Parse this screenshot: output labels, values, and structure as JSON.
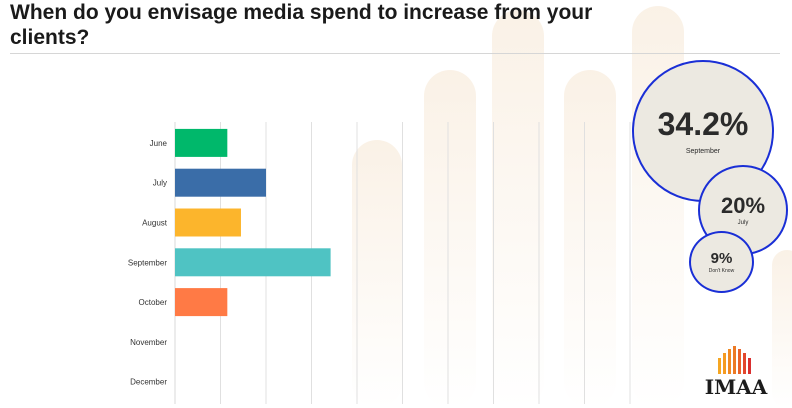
{
  "page": {
    "title": "When do you envisage media spend to increase from your clients?"
  },
  "chart_data": {
    "type": "bar",
    "orientation": "horizontal",
    "title": "When do you envisage media spend to increase from your clients?",
    "categories": [
      "June",
      "July",
      "August",
      "September",
      "October",
      "November",
      "December"
    ],
    "values": [
      11.5,
      20,
      14.5,
      34.2,
      11.5,
      0,
      0
    ],
    "colors": [
      "#00b86b",
      "#3a6da8",
      "#fcb52c",
      "#4fc3c3",
      "#ff7a45",
      "#cccccc",
      "#cccccc"
    ],
    "xlim": [
      0,
      100
    ],
    "grid": true,
    "legend": "none"
  },
  "highlights": [
    {
      "value": "34.2%",
      "label": "September"
    },
    {
      "value": "20%",
      "label": "July"
    },
    {
      "value": "9%",
      "label": "Don't Know"
    }
  ],
  "logo": {
    "text": "IMAA"
  },
  "colors": {
    "bubble_border": "#1a2fd6",
    "bubble_fill": "#ece9e1",
    "grid": "#e0e0e0"
  }
}
